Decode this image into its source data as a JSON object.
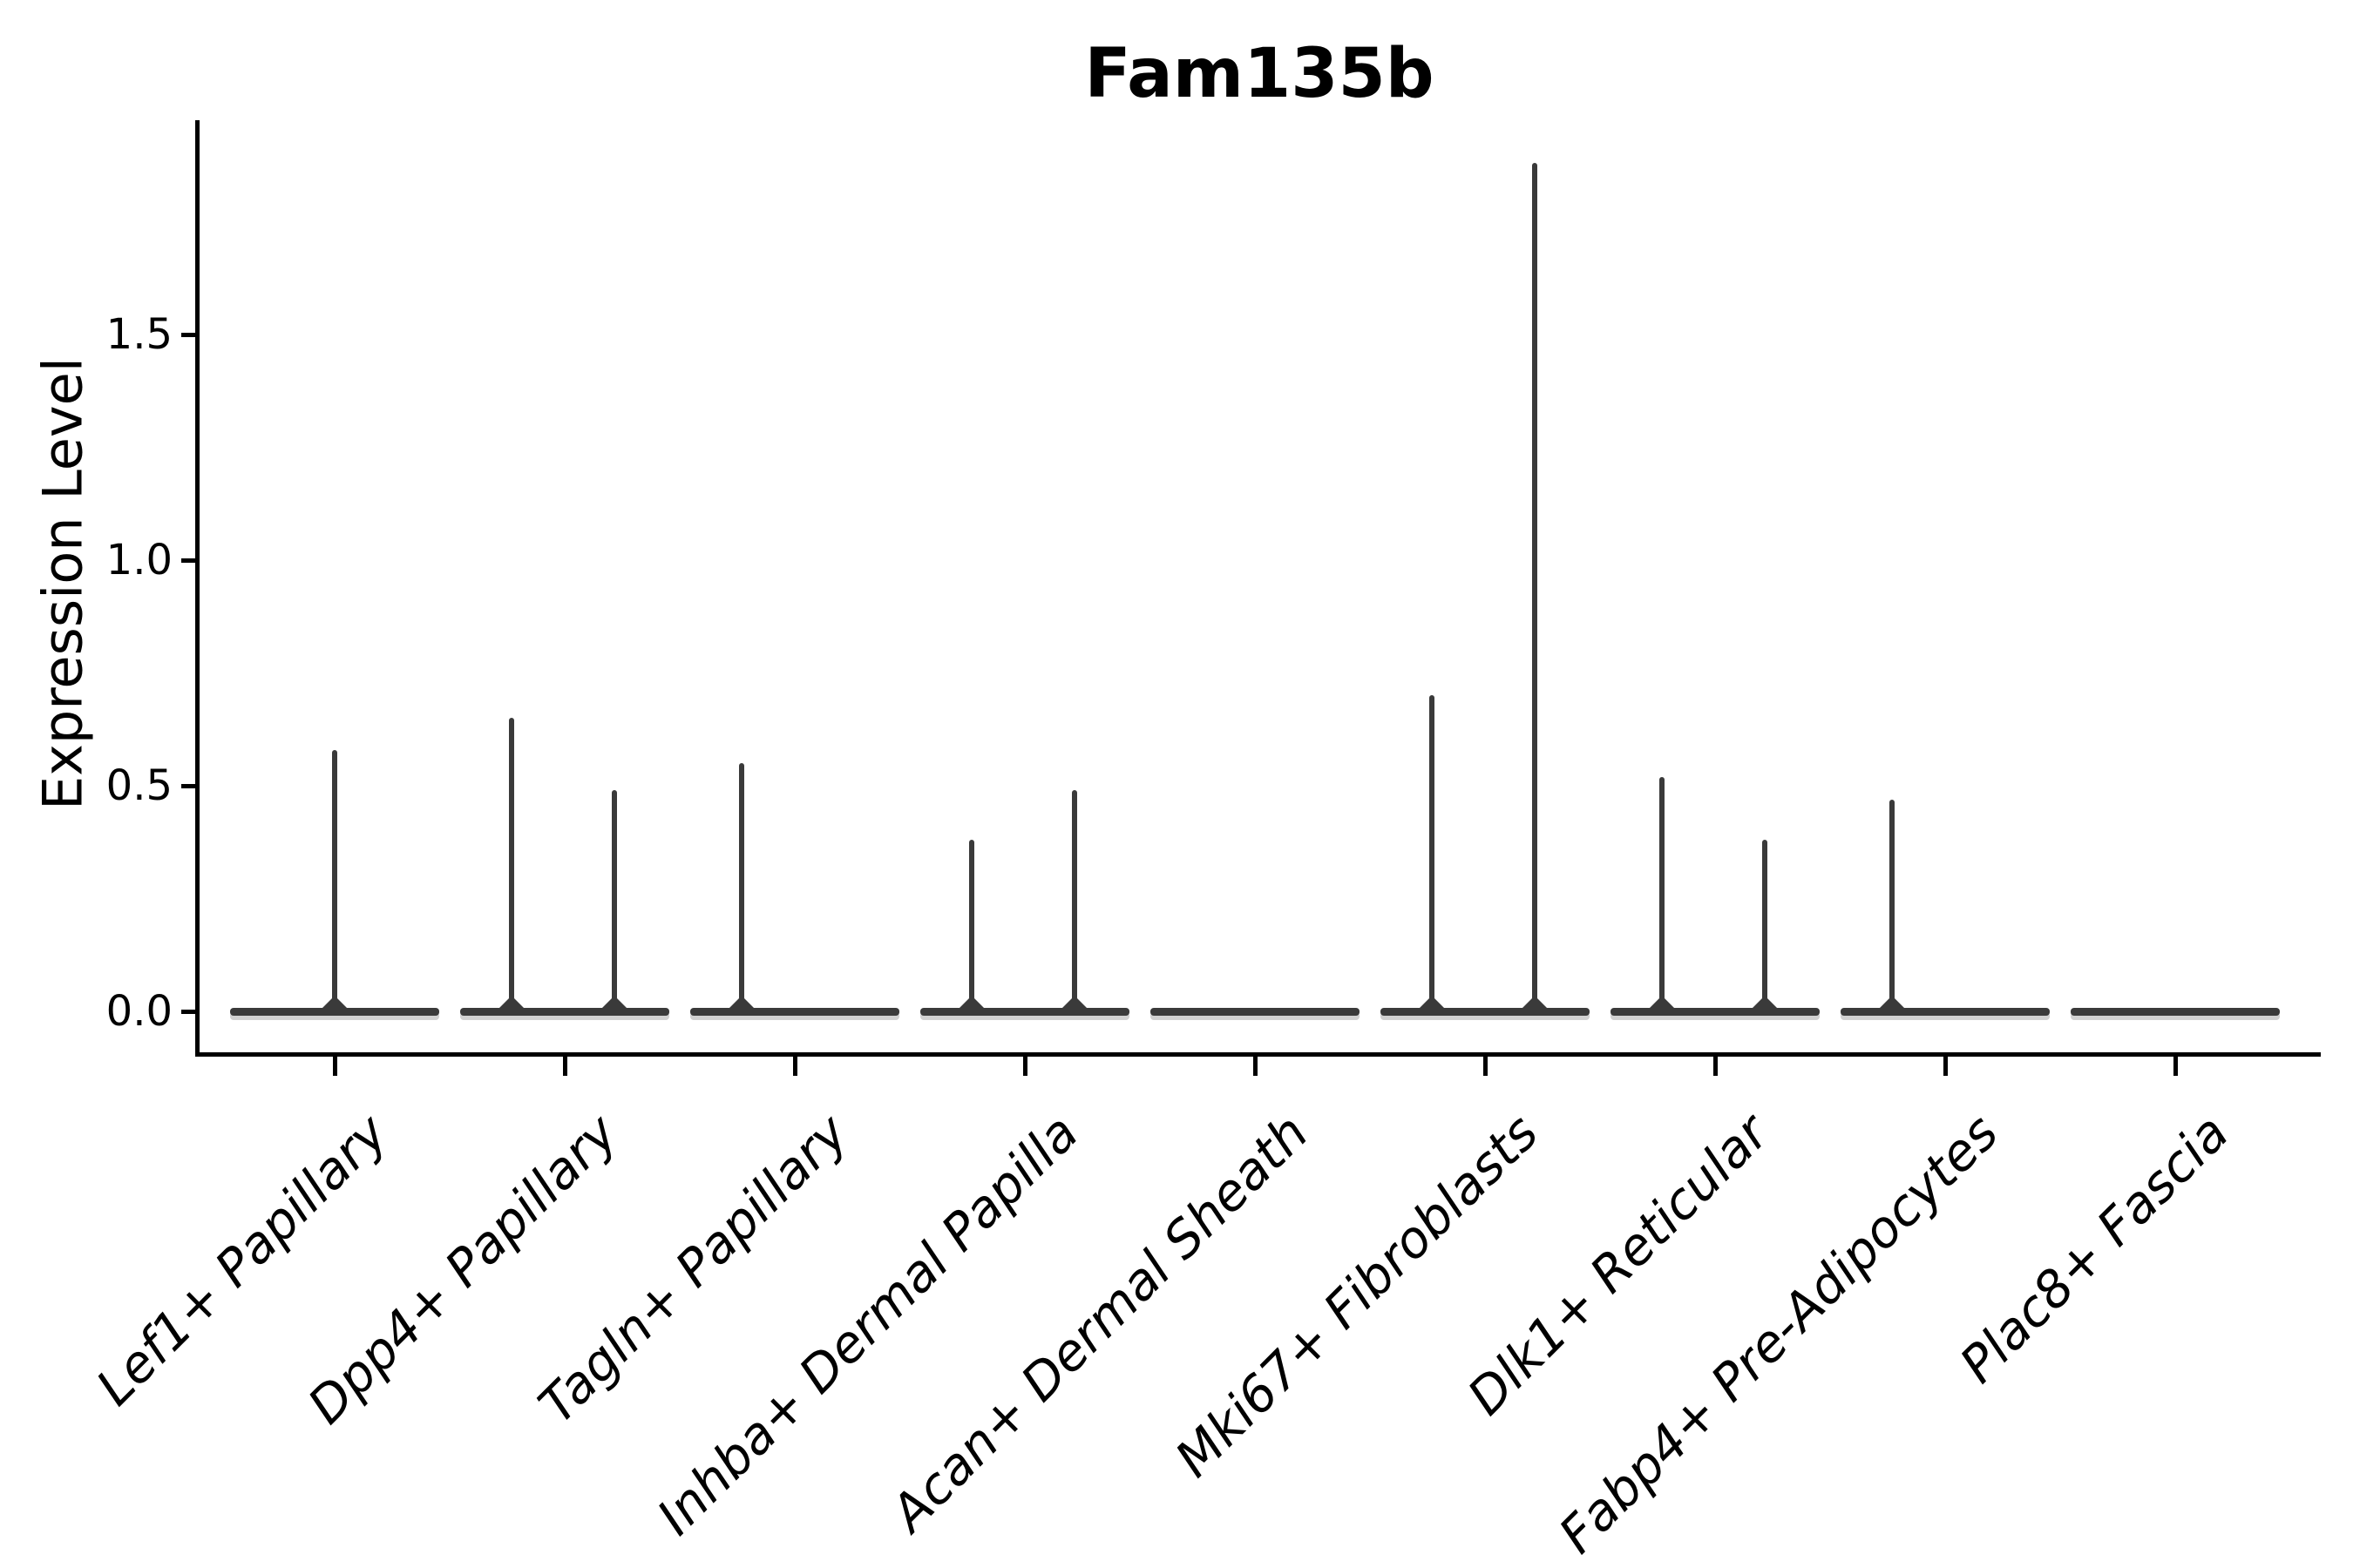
{
  "title": "Fam135b",
  "y_axis": {
    "label": "Expression Level",
    "tick_labels": [
      "0.0",
      "0.5",
      "1.0",
      "1.5"
    ]
  },
  "colors": {
    "violin_stroke": "#3a3a3a",
    "axis": "#000000",
    "background": "#ffffff"
  },
  "chart_data": {
    "type": "violin",
    "title": "Fam135b",
    "xlabel": "",
    "ylabel": "Expression Level",
    "ylim": [
      0,
      1.97
    ],
    "yticks": [
      0.0,
      0.5,
      1.0,
      1.5
    ],
    "grid": false,
    "legend": "none",
    "description": "Violin plot of Fam135b expression per fibroblast cluster; most cells express 0 so each violin collapses to a wide flat base at 0 with thin needle spikes rising to the cluster maximum.",
    "categories": [
      "Lef1+ Papillary",
      "Dpp4+ Papillary",
      "Tagln+ Papillary",
      "Inhba+ Dermal Papilla",
      "Acan+ Dermal Sheath",
      "Mki67+ Fibroblasts",
      "Dlk1+ Reticular",
      "Fabp4+ Pre-Adipocytes",
      "Plac8+ Fascia"
    ],
    "violins": [
      {
        "cluster": "Lef1+ Papillary",
        "baseline": 0.0,
        "needles": [
          {
            "pos": "center",
            "max": 0.58
          }
        ]
      },
      {
        "cluster": "Dpp4+ Papillary",
        "baseline": 0.0,
        "needles": [
          {
            "pos": "left",
            "max": 0.65
          },
          {
            "pos": "right",
            "max": 0.49
          }
        ]
      },
      {
        "cluster": "Tagln+ Papillary",
        "baseline": 0.0,
        "needles": [
          {
            "pos": "left",
            "max": 0.55
          }
        ]
      },
      {
        "cluster": "Inhba+ Dermal Papilla",
        "baseline": 0.0,
        "needles": [
          {
            "pos": "left",
            "max": 0.38
          },
          {
            "pos": "right",
            "max": 0.49
          }
        ]
      },
      {
        "cluster": "Acan+ Dermal Sheath",
        "baseline": 0.0,
        "needles": []
      },
      {
        "cluster": "Mki67+ Fibroblasts",
        "baseline": 0.0,
        "needles": [
          {
            "pos": "left",
            "max": 0.7
          },
          {
            "pos": "right",
            "max": 1.88
          }
        ]
      },
      {
        "cluster": "Dlk1+ Reticular",
        "baseline": 0.0,
        "needles": [
          {
            "pos": "left",
            "max": 0.52
          },
          {
            "pos": "right",
            "max": 0.38
          }
        ]
      },
      {
        "cluster": "Fabp4+ Pre-Adipocytes",
        "baseline": 0.0,
        "needles": [
          {
            "pos": "left",
            "max": 0.47
          }
        ]
      },
      {
        "cluster": "Plac8+ Fascia",
        "baseline": 0.0,
        "needles": []
      }
    ]
  }
}
